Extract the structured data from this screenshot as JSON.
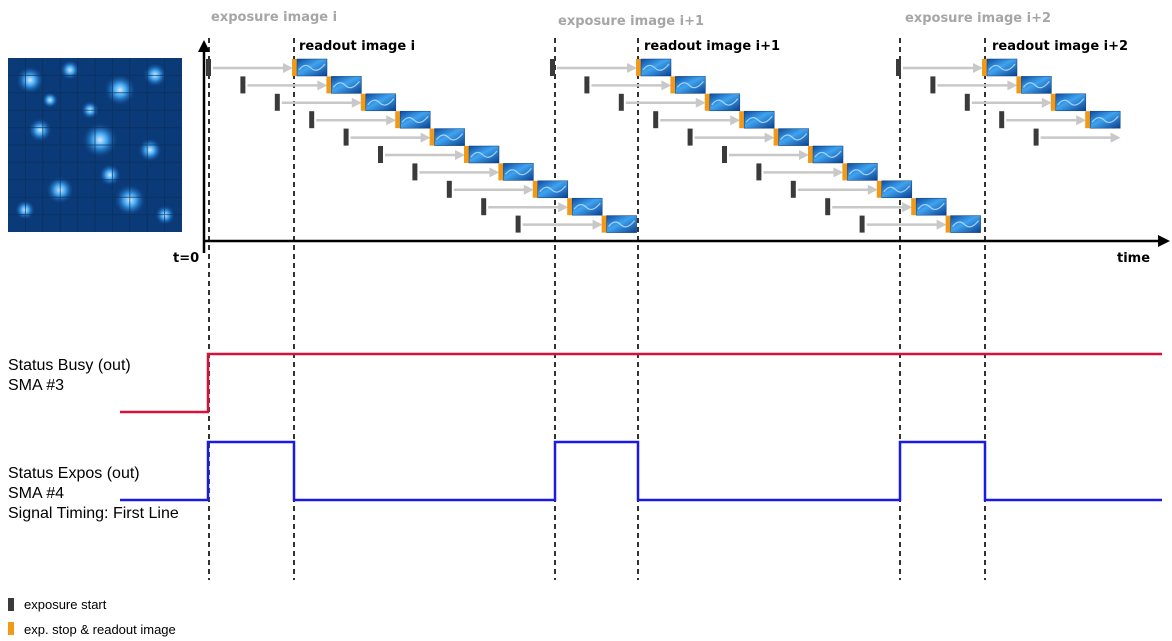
{
  "header": {
    "exposure_labels": [
      "exposure image i",
      "exposure image i+1",
      "exposure image i+2"
    ],
    "readout_labels": [
      "readout image i",
      "readout image i+1",
      "readout image i+2"
    ]
  },
  "axis": {
    "origin_label": "t=0",
    "time_label": "time"
  },
  "signals": {
    "busy": {
      "line1": "Status Busy (out)",
      "line2": "SMA #3",
      "color": "#d6123a"
    },
    "expos": {
      "line1": "Status Expos (out)",
      "line2": "SMA #4",
      "line3": "Signal Timing: First Line",
      "color": "#1a1ae6"
    }
  },
  "legend": {
    "exposure_start": {
      "label": "exposure start",
      "color": "#3a3a3a"
    },
    "readout": {
      "label": "exp. stop & readout image",
      "color": "#f29a17"
    }
  },
  "colors": {
    "arrow": "#c8c8c8",
    "sensor_tile": "#1f7fd6",
    "sensor_bg": "#0a3a78"
  }
}
